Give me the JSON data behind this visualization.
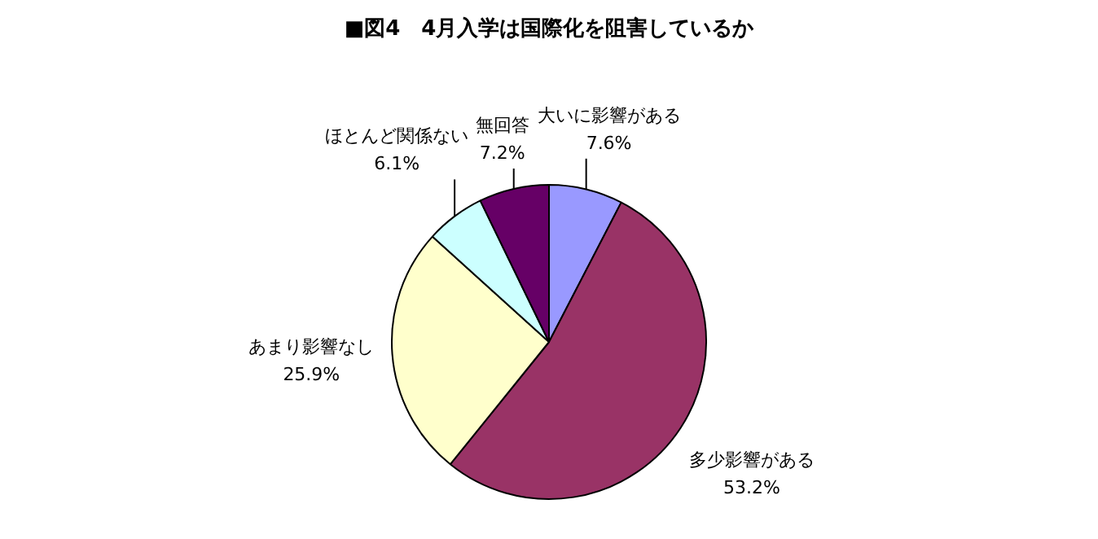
{
  "chart_data": {
    "type": "pie",
    "title": "■図4　4月入学は国際化を阻害しているか",
    "categories": [
      "大いに影響がある",
      "多少影響がある",
      "あまり影響なし",
      "ほとんど関係ない",
      "無回答"
    ],
    "values": [
      7.6,
      53.2,
      25.9,
      6.1,
      7.2
    ],
    "value_labels": [
      "7.6%",
      "53.2%",
      "25.9%",
      "6.1%",
      "7.2%"
    ],
    "colors": [
      "#9999ff",
      "#993366",
      "#ffffcc",
      "#ccffff",
      "#660066"
    ],
    "legend": false
  }
}
